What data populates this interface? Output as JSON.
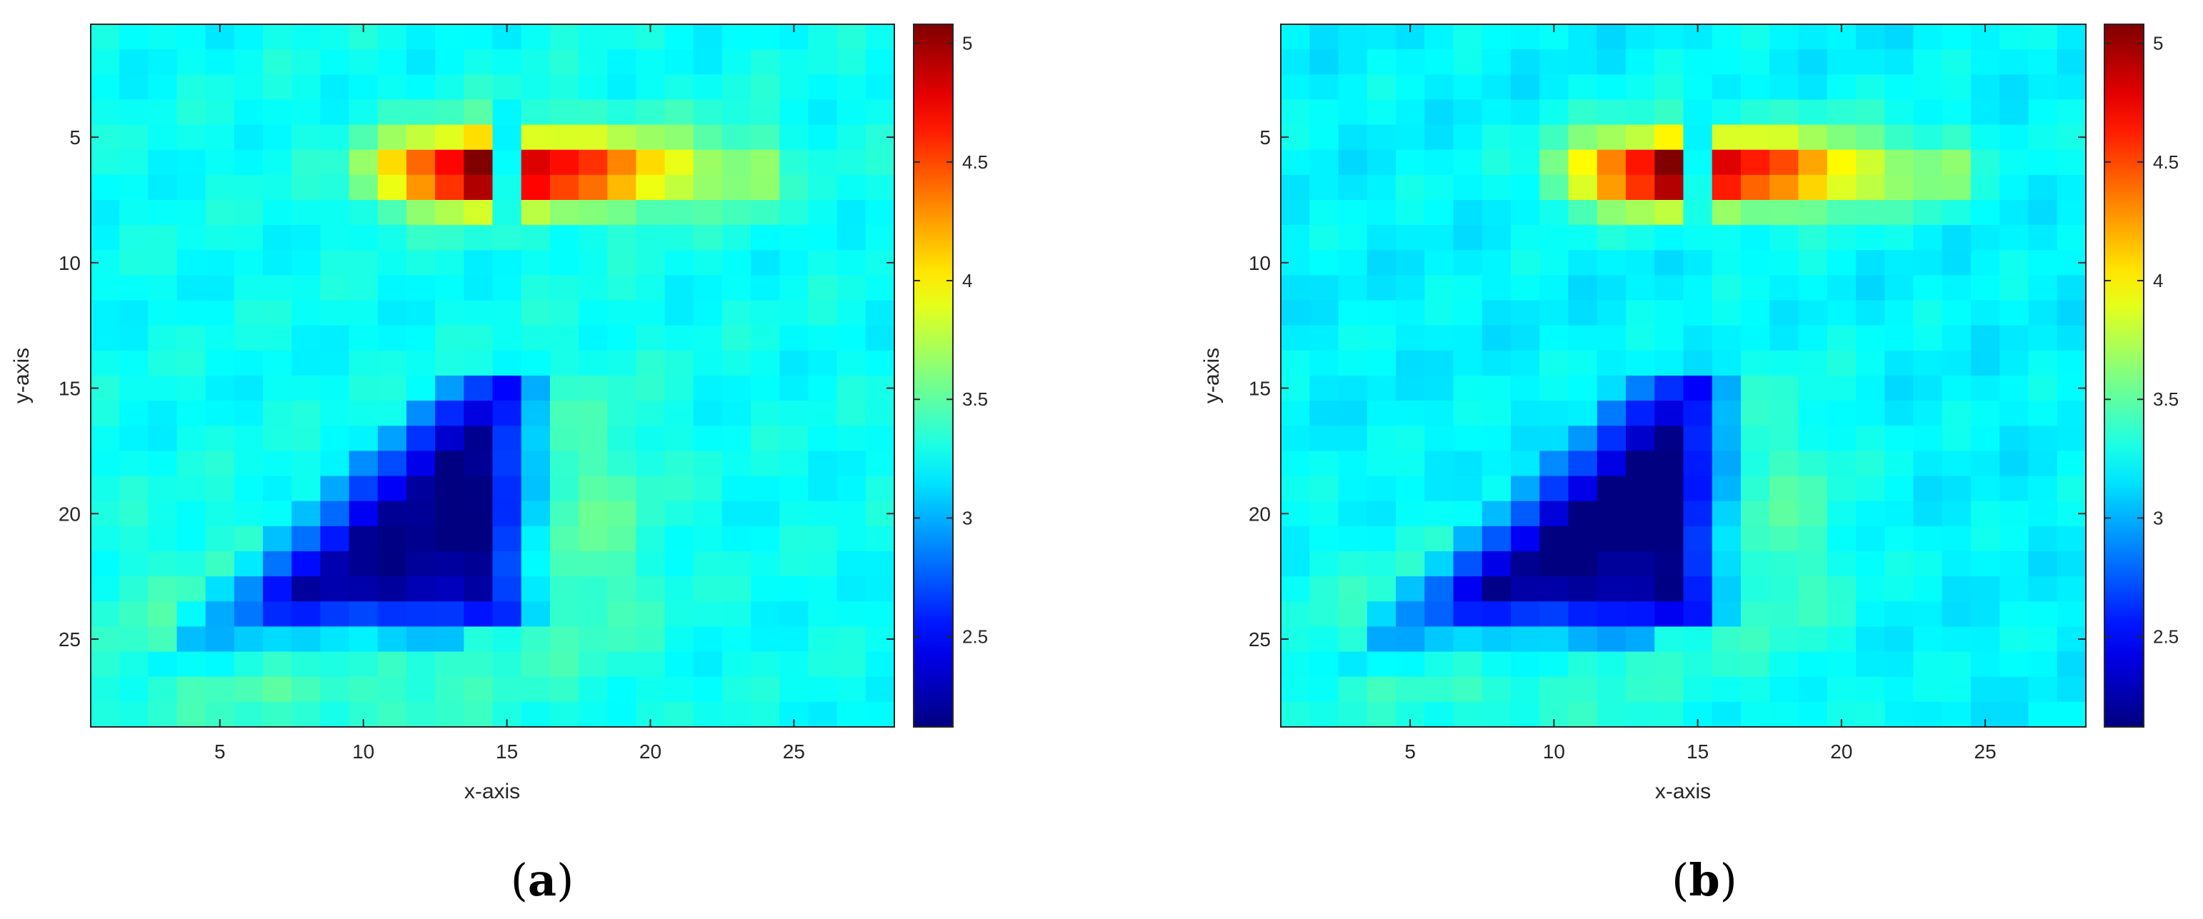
{
  "chart_data": [
    {
      "type": "heatmap",
      "panel_label": "a",
      "xlabel": "x-axis",
      "ylabel": "y-axis",
      "xticks": [
        5,
        10,
        15,
        20,
        25
      ],
      "yticks": [
        5,
        10,
        15,
        20,
        25
      ],
      "xlim": [
        0.5,
        28.5
      ],
      "ylim": [
        0.5,
        28.5
      ],
      "y_reversed": true,
      "grid_size": [
        28,
        28
      ],
      "colormap": "jet",
      "colorbar": {
        "min": 2.12,
        "max": 5.08,
        "ticks": [
          2.5,
          3,
          3.5,
          4,
          4.5,
          5
        ],
        "tick_labels": [
          "2.5",
          "3",
          "3.5",
          "4",
          "4.5",
          "5"
        ]
      },
      "background_value": 3.25,
      "features": [
        {
          "region": "red band",
          "rows": [
            4,
            8
          ],
          "cols": [
            10,
            24
          ],
          "peak_value": 5.0
        },
        {
          "region": "blue triangle",
          "rows": [
            15,
            24
          ],
          "cols": [
            5,
            15
          ],
          "min_value": 2.15
        }
      ]
    },
    {
      "type": "heatmap",
      "panel_label": "b",
      "xlabel": "x-axis",
      "ylabel": "y-axis",
      "xticks": [
        5,
        10,
        15,
        20,
        25
      ],
      "yticks": [
        5,
        10,
        15,
        20,
        25
      ],
      "xlim": [
        0.5,
        28.5
      ],
      "ylim": [
        0.5,
        28.5
      ],
      "y_reversed": true,
      "grid_size": [
        28,
        28
      ],
      "colormap": "jet",
      "colorbar": {
        "min": 2.12,
        "max": 5.08,
        "ticks": [
          2.5,
          3,
          3.5,
          4,
          4.5,
          5
        ],
        "tick_labels": [
          "2.5",
          "3",
          "3.5",
          "4",
          "4.5",
          "5"
        ]
      },
      "background_value": 3.2,
      "features": [
        {
          "region": "red band",
          "rows": [
            4,
            8
          ],
          "cols": [
            10,
            24
          ],
          "peak_value": 5.0
        },
        {
          "region": "blue triangle",
          "rows": [
            15,
            24
          ],
          "cols": [
            5,
            15
          ],
          "min_value": 2.15
        }
      ]
    }
  ]
}
